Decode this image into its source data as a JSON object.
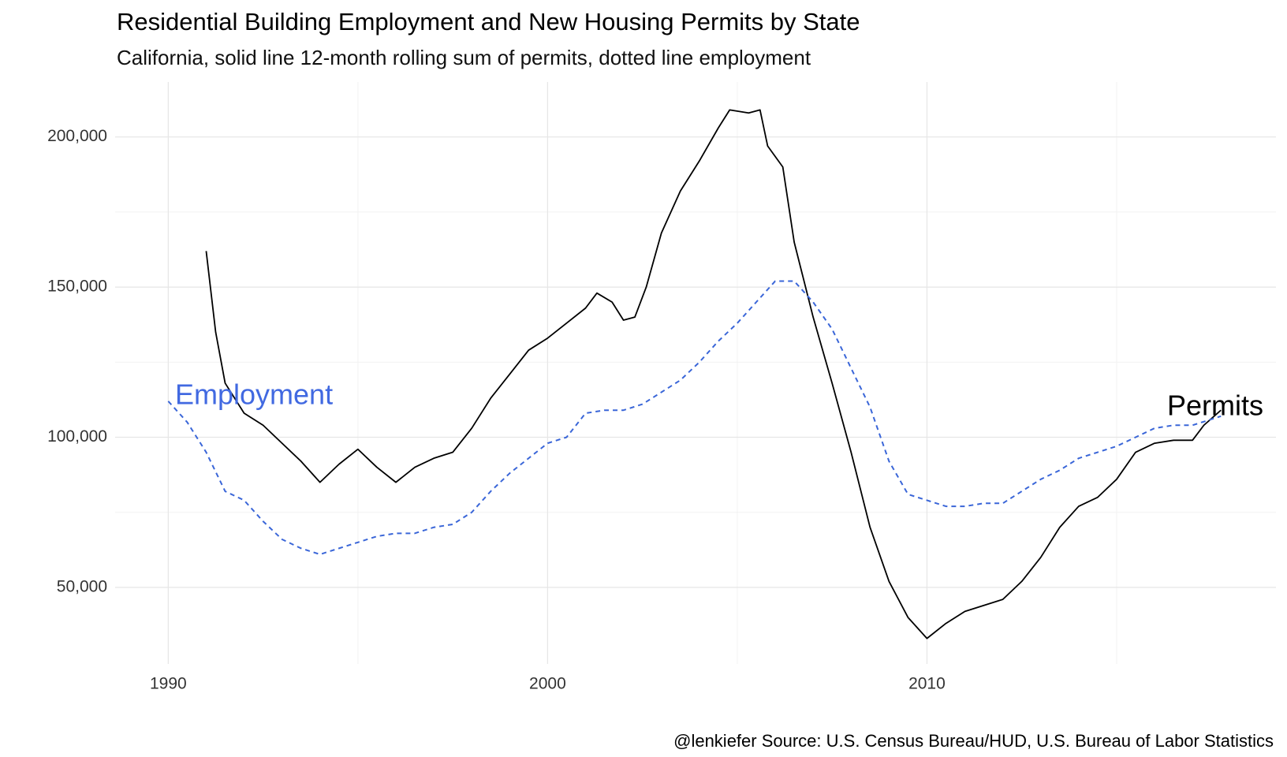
{
  "chart_data": {
    "type": "line",
    "title": "Residential Building Employment and New Housing Permits by State",
    "subtitle": "California, solid line 12-month rolling sum of permits, dotted line employment",
    "caption": "@lenkiefer Source: U.S. Census Bureau/HUD, U.S. Bureau of Labor Statistics",
    "xlim": [
      1988.6,
      2019.2
    ],
    "ylim": [
      24500,
      218300
    ],
    "xticks": [
      1990,
      2000,
      2010
    ],
    "yticks": [
      {
        "value": 50000,
        "label": "50,000"
      },
      {
        "value": 100000,
        "label": "100,000"
      },
      {
        "value": 150000,
        "label": "150,000"
      },
      {
        "value": 200000,
        "label": "200,000"
      }
    ],
    "xminor": [
      1995,
      2005,
      2015
    ],
    "yminor": [
      75000,
      125000,
      175000
    ],
    "grid": true,
    "series": [
      {
        "name": "Permits",
        "color": "#000000",
        "dash": false,
        "x": [
          1991.0,
          1991.25,
          1991.5,
          1992.0,
          1992.5,
          1993.0,
          1993.5,
          1994.0,
          1994.5,
          1995.0,
          1995.5,
          1996.0,
          1996.5,
          1997.0,
          1997.5,
          1998.0,
          1998.5,
          1999.0,
          1999.5,
          2000.0,
          2000.5,
          2001.0,
          2001.3,
          2001.7,
          2002.0,
          2002.3,
          2002.6,
          2003.0,
          2003.5,
          2004.0,
          2004.5,
          2004.8,
          2005.3,
          2005.6,
          2005.8,
          2006.2,
          2006.5,
          2007.0,
          2007.5,
          2008.0,
          2008.5,
          2009.0,
          2009.5,
          2010.0,
          2010.5,
          2011.0,
          2011.5,
          2012.0,
          2012.5,
          2013.0,
          2013.5,
          2014.0,
          2014.5,
          2015.0,
          2015.5,
          2016.0,
          2016.5,
          2017.0,
          2017.3,
          2017.75
        ],
        "values": [
          162000,
          135000,
          118000,
          108000,
          104000,
          98000,
          92000,
          85000,
          91000,
          96000,
          90000,
          85000,
          90000,
          93000,
          95000,
          103000,
          113000,
          121000,
          129000,
          133000,
          138000,
          143000,
          148000,
          145000,
          139000,
          140000,
          150000,
          168000,
          182000,
          192000,
          203000,
          209000,
          208000,
          209000,
          197000,
          190000,
          165000,
          140000,
          118000,
          95000,
          70000,
          52000,
          40000,
          33000,
          38000,
          42000,
          44000,
          46000,
          52000,
          60000,
          70000,
          77000,
          80000,
          86000,
          95000,
          98000,
          99000,
          99000,
          104000,
          109000
        ]
      },
      {
        "name": "Employment",
        "color": "#3a66d8",
        "dash": true,
        "x": [
          1990.0,
          1990.5,
          1991.0,
          1991.5,
          1992.0,
          1992.5,
          1993.0,
          1993.5,
          1994.0,
          1994.5,
          1995.0,
          1995.5,
          1996.0,
          1996.5,
          1997.0,
          1997.5,
          1998.0,
          1998.5,
          1999.0,
          1999.5,
          2000.0,
          2000.5,
          2001.0,
          2001.5,
          2002.0,
          2002.5,
          2003.0,
          2003.5,
          2004.0,
          2004.5,
          2005.0,
          2005.5,
          2006.0,
          2006.5,
          2007.0,
          2007.5,
          2008.0,
          2008.5,
          2009.0,
          2009.5,
          2010.0,
          2010.5,
          2011.0,
          2011.5,
          2012.0,
          2012.5,
          2013.0,
          2013.5,
          2014.0,
          2014.5,
          2015.0,
          2015.5,
          2016.0,
          2016.5,
          2017.0,
          2017.75
        ],
        "values": [
          112000,
          105000,
          95000,
          82000,
          79000,
          72000,
          66000,
          63000,
          61000,
          63000,
          65000,
          67000,
          68000,
          68000,
          70000,
          71000,
          75000,
          82000,
          88000,
          93000,
          98000,
          100000,
          108000,
          109000,
          109000,
          111000,
          115000,
          119000,
          125000,
          132000,
          138000,
          145000,
          152000,
          152000,
          145000,
          136000,
          123000,
          110000,
          92000,
          81000,
          79000,
          77000,
          77000,
          78000,
          78000,
          82000,
          86000,
          89000,
          93000,
          95000,
          97000,
          100000,
          103000,
          104000,
          104000,
          107000
        ]
      }
    ]
  }
}
